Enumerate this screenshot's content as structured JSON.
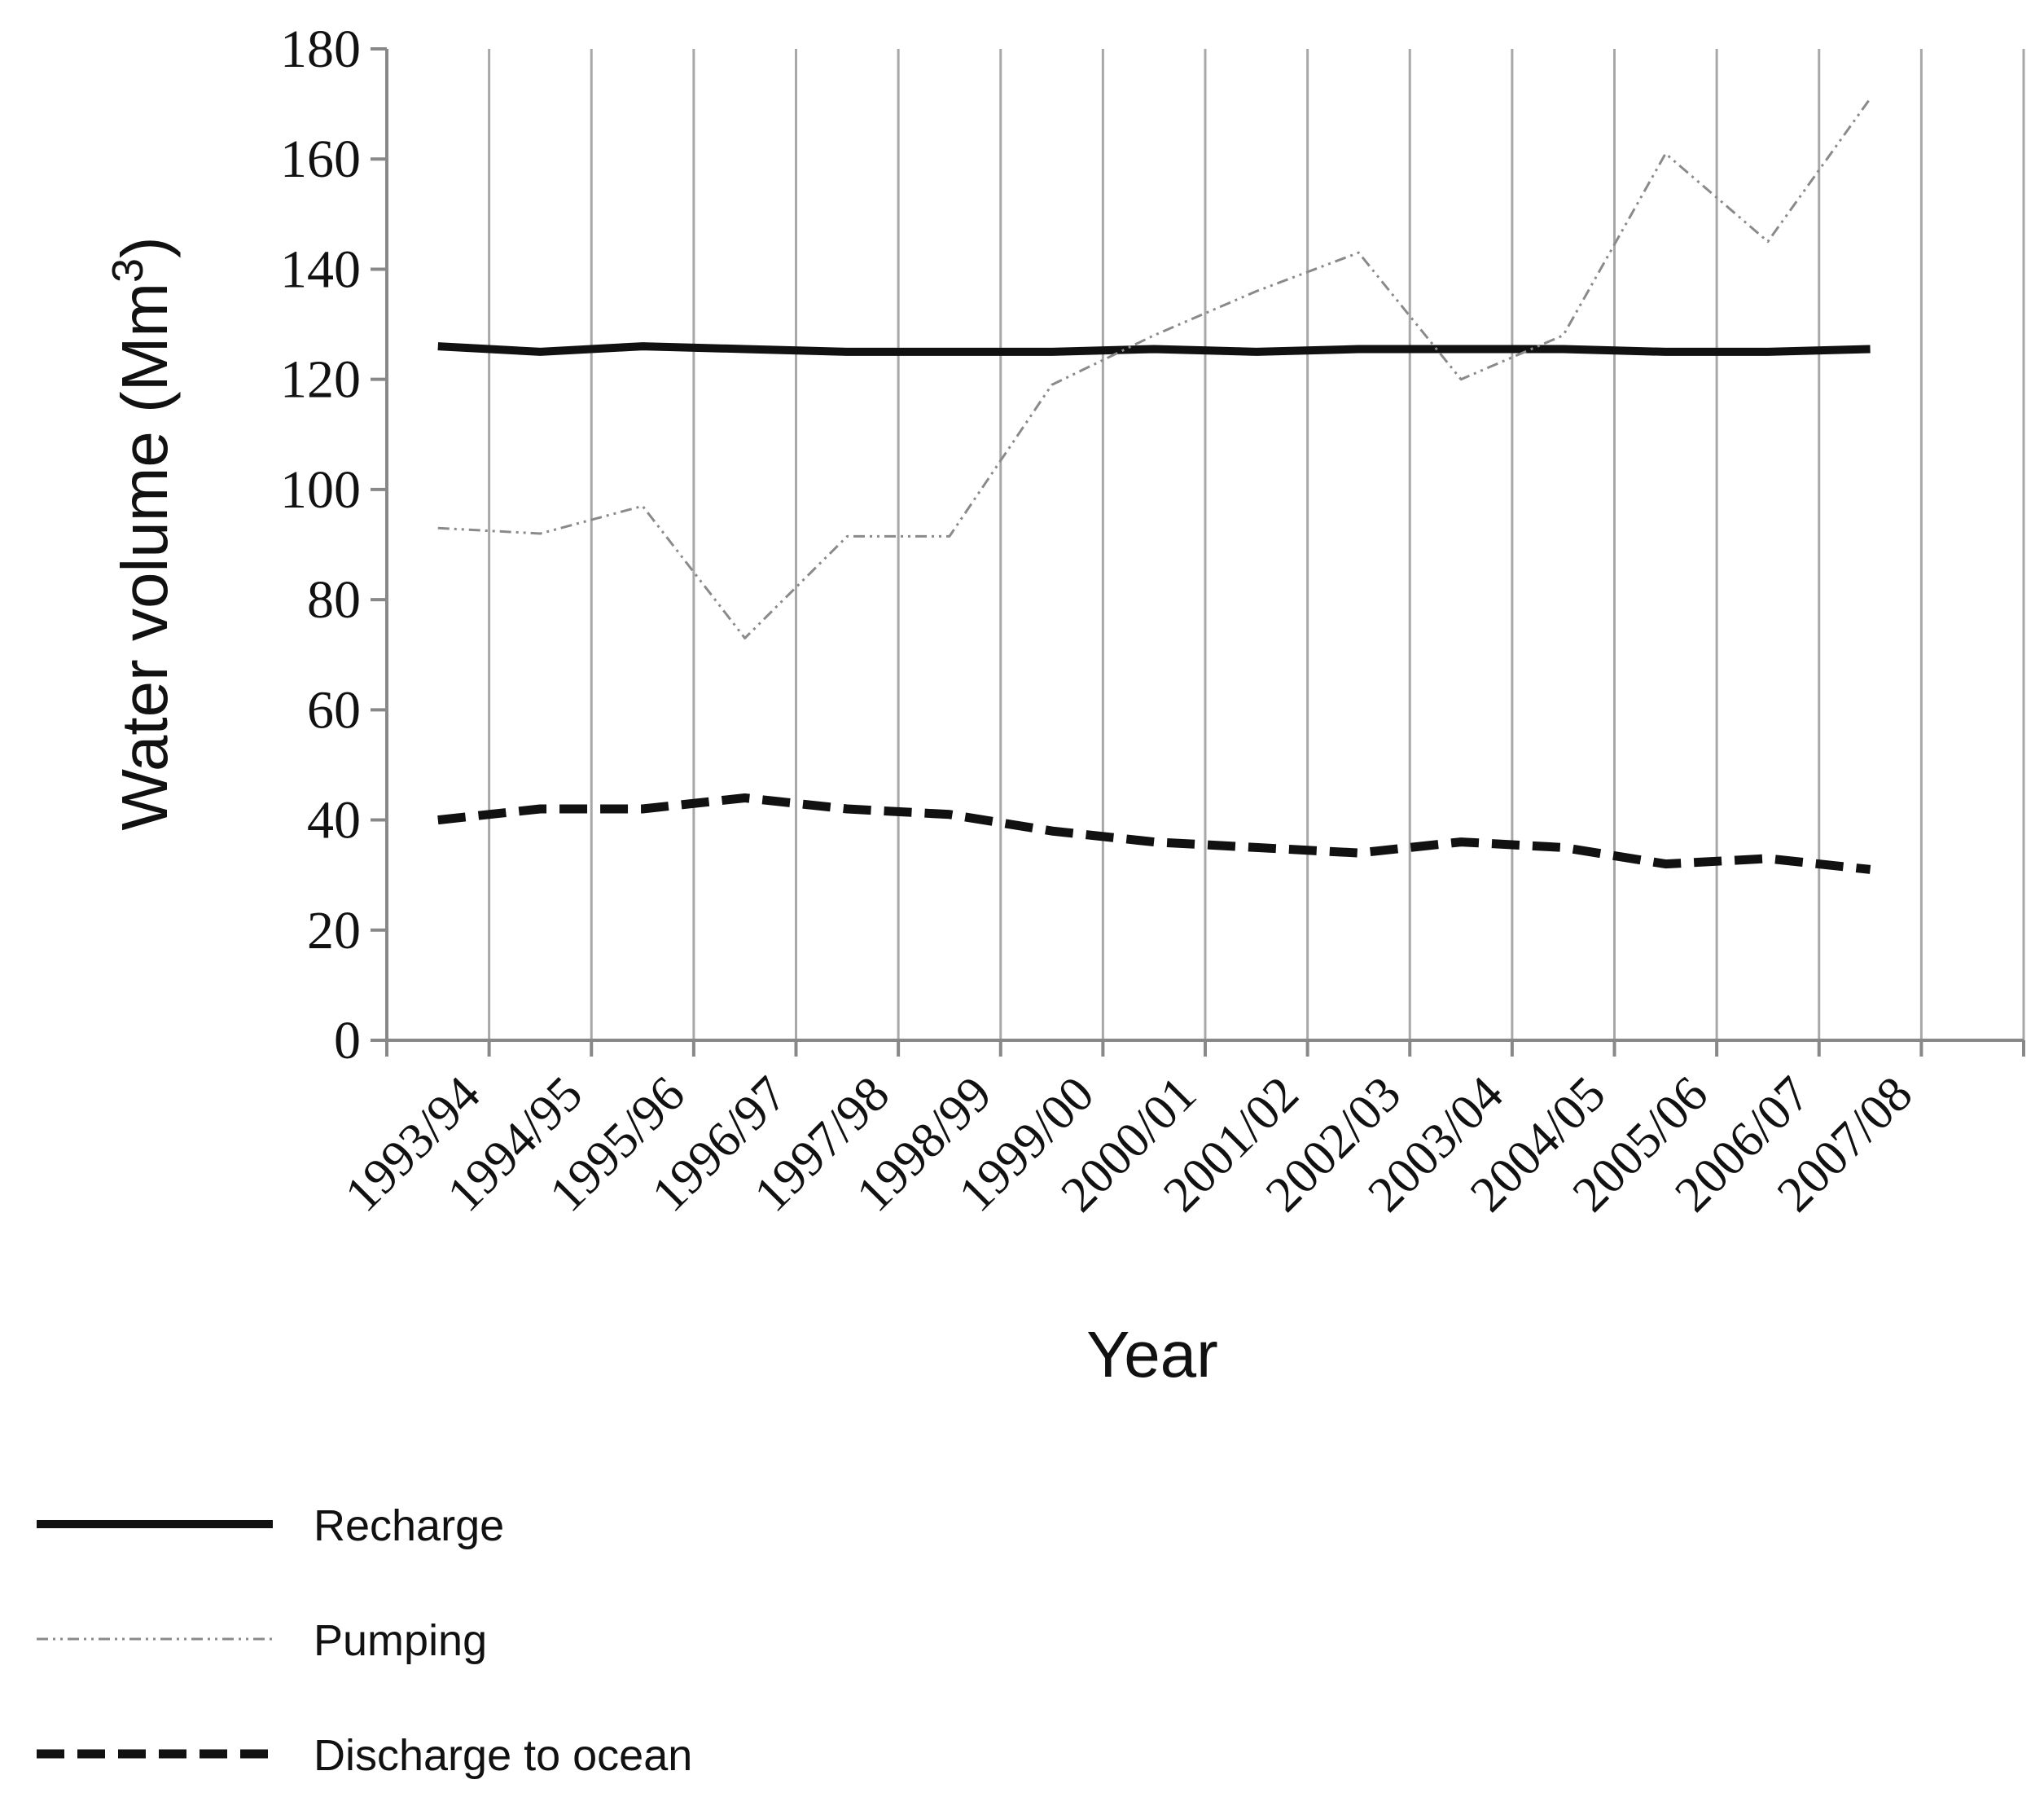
{
  "chart_data": {
    "type": "line",
    "title": "",
    "xlabel": "Year",
    "ylabel": "Water volume  (Mm",
    "ylabel_superscript": "3",
    "ylabel_close": ")",
    "ylim": [
      0,
      180
    ],
    "yticks": [
      0,
      20,
      40,
      60,
      80,
      100,
      120,
      140,
      160,
      180
    ],
    "grid": "vertical",
    "legend_position": "bottom-left",
    "categories": [
      "1993/94",
      "1994/95",
      "1995/96",
      "1996/97",
      "1997/98",
      "1998/99",
      "1999/00",
      "2000/01",
      "2001/02",
      "2002/03",
      "2003/04",
      "2004/05",
      "2005/06",
      "2006/07",
      "2007/08"
    ],
    "series": [
      {
        "name": "Recharge",
        "style": "solid-thick",
        "color": "#111111",
        "values": [
          126,
          125,
          126,
          125.5,
          125,
          125,
          125,
          125.5,
          125,
          125.5,
          125.5,
          125.5,
          125,
          125,
          125.5
        ]
      },
      {
        "name": "Pumping",
        "style": "dash-dot-thin",
        "color": "#8a8a8a",
        "values": [
          93,
          92,
          97,
          73,
          91.5,
          91.5,
          119,
          128,
          136,
          143,
          120,
          128,
          161,
          145,
          171
        ]
      },
      {
        "name": "Discharge to ocean",
        "style": "dashed-thick",
        "color": "#111111",
        "values": [
          40,
          42,
          42,
          44,
          42,
          41,
          38,
          36,
          35,
          34,
          36,
          35,
          32,
          33,
          31
        ]
      }
    ]
  }
}
